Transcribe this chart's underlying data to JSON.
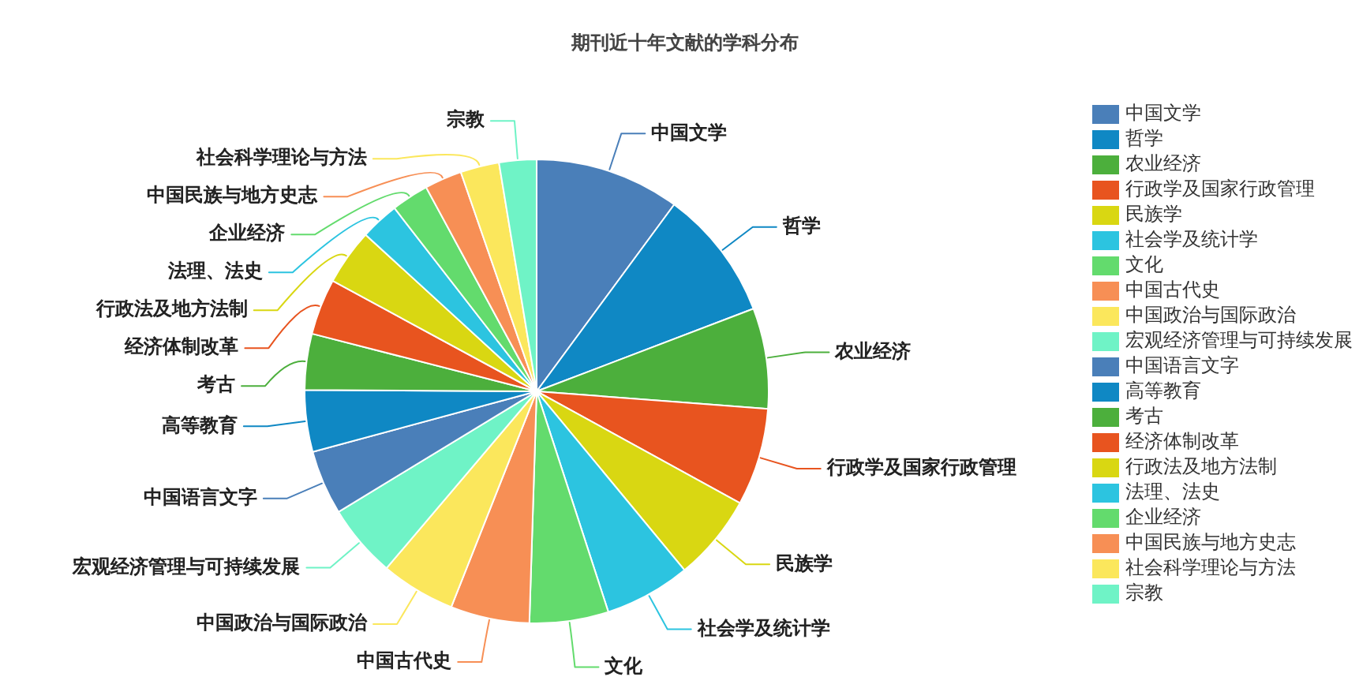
{
  "chart_data": {
    "type": "pie",
    "title": "期刊近十年文献的学科分布",
    "categories": [
      "中国文学",
      "哲学",
      "农业经济",
      "行政学及国家行政管理",
      "民族学",
      "社会学及统计学",
      "文化",
      "中国古代史",
      "中国政治与国际政治",
      "宏观经济管理与可持续发展",
      "中国语言文字",
      "高等教育",
      "考古",
      "经济体制改革",
      "行政法及地方法制",
      "法理、法史",
      "企业经济",
      "中国民族与地方史志",
      "社会科学理论与方法",
      "宗教"
    ],
    "values": [
      10.1,
      9.1,
      7.0,
      6.8,
      6.0,
      6.0,
      5.5,
      5.5,
      5.2,
      5.1,
      4.5,
      4.3,
      3.9,
      3.9,
      3.9,
      2.7,
      2.6,
      2.6,
      2.7,
      2.6
    ],
    "colors": [
      "#4a7fb9",
      "#0f88c4",
      "#4caf3c",
      "#e8541f",
      "#d9d712",
      "#2cc4e0",
      "#63db6d",
      "#f78f55",
      "#fbe75c",
      "#6ff3c6",
      "#4a7fb9",
      "#0f88c4",
      "#4caf3c",
      "#e8541f",
      "#d9d712",
      "#2cc4e0",
      "#63db6d",
      "#f78f55",
      "#fbe75c",
      "#6ff3c6"
    ],
    "legend": "right"
  }
}
